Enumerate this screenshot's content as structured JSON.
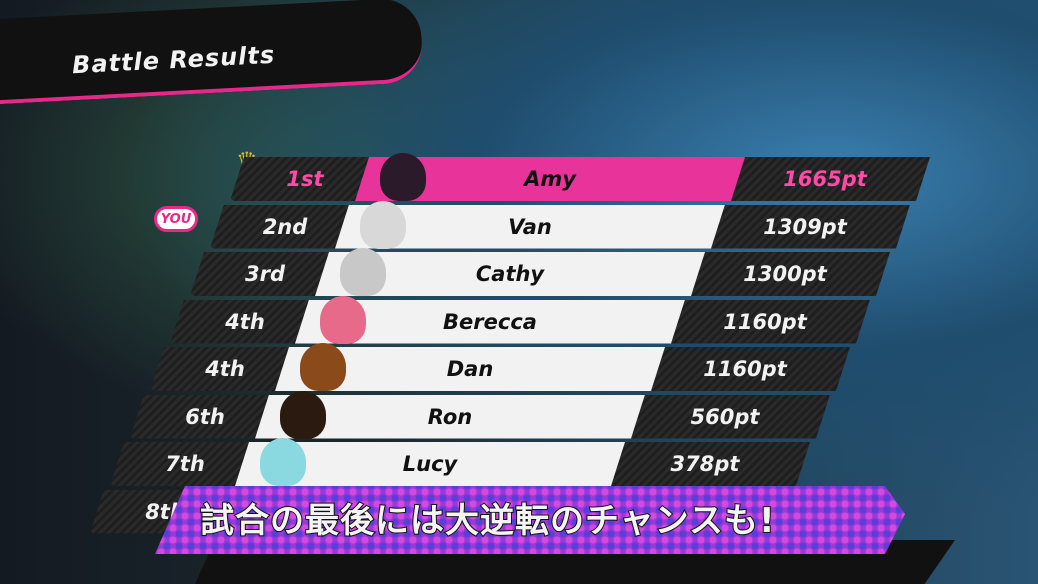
{
  "header": {
    "title": "Battle Results"
  },
  "you_badge": "YOU",
  "colors": {
    "accent": "#e8278a",
    "first_row": "#e8339a",
    "caption_bg": "#9a38d8"
  },
  "results": [
    {
      "rank": "1st",
      "name": "Amy",
      "score": "1665pt",
      "avatar": "#2a1a2a"
    },
    {
      "rank": "2nd",
      "name": "Van",
      "score": "1309pt",
      "avatar": "#d8d8d8"
    },
    {
      "rank": "3rd",
      "name": "Cathy",
      "score": "1300pt",
      "avatar": "#c8c8c8"
    },
    {
      "rank": "4th",
      "name": "Berecca",
      "score": "1160pt",
      "avatar": "#e86a8a"
    },
    {
      "rank": "4th",
      "name": "Dan",
      "score": "1160pt",
      "avatar": "#8a4a1a"
    },
    {
      "rank": "6th",
      "name": "Ron",
      "score": "560pt",
      "avatar": "#2a1a10"
    },
    {
      "rank": "7th",
      "name": "Lucy",
      "score": "378pt",
      "avatar": "#8ad8e0"
    },
    {
      "rank": "8th",
      "name": "",
      "score": ""
    }
  ],
  "caption": "試合の最後には大逆転のチャンスも!"
}
